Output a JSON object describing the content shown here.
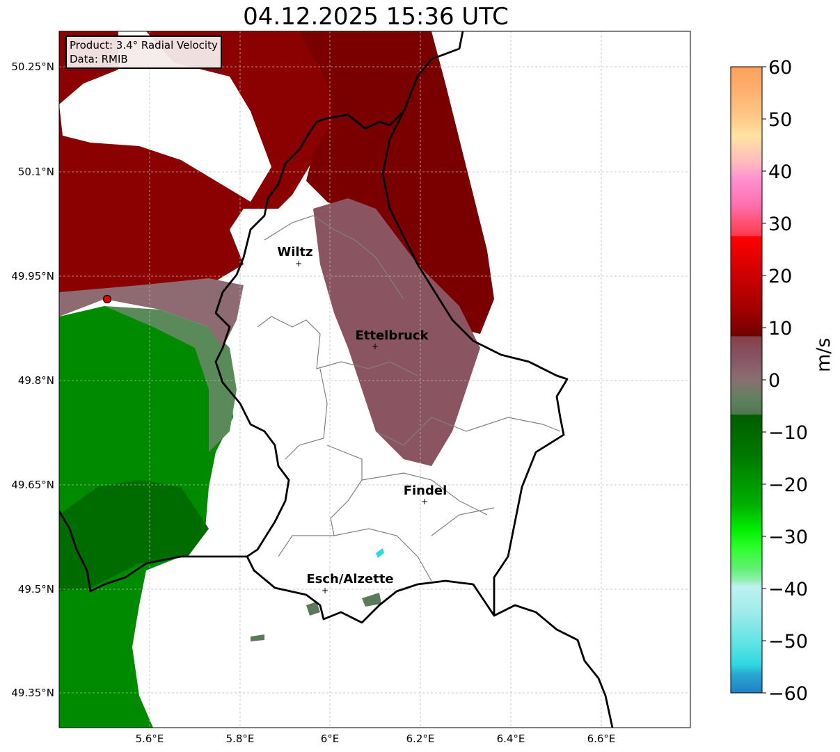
{
  "title": "04.12.2025 15:36 UTC",
  "infobox": {
    "product": "Product: 3.4° Radial Velocity",
    "data": "Data: RMIB"
  },
  "lon_ticks": [
    "5.6°E",
    "5.8°E",
    "6°E",
    "6.2°E",
    "6.4°E",
    "6.6°E"
  ],
  "lat_ticks": [
    "50.25°N",
    "50.1°N",
    "49.95°N",
    "49.8°N",
    "49.65°N",
    "49.5°N",
    "49.35°N"
  ],
  "cities": [
    {
      "name": "Wiltz"
    },
    {
      "name": "Ettelbruck"
    },
    {
      "name": "Findel"
    },
    {
      "name": "Esch/Alzette"
    }
  ],
  "colorbar": {
    "unit": "m/s",
    "ticks": [
      "60",
      "50",
      "40",
      "30",
      "20",
      "10",
      "0",
      "−10",
      "−20",
      "−30",
      "−40",
      "−50",
      "−60"
    ],
    "range": [
      -60,
      60
    ]
  },
  "colors": {
    "dark_red": "#8b0000",
    "mauve": "#8a5560",
    "green": "#008c00",
    "border": "#000000"
  }
}
